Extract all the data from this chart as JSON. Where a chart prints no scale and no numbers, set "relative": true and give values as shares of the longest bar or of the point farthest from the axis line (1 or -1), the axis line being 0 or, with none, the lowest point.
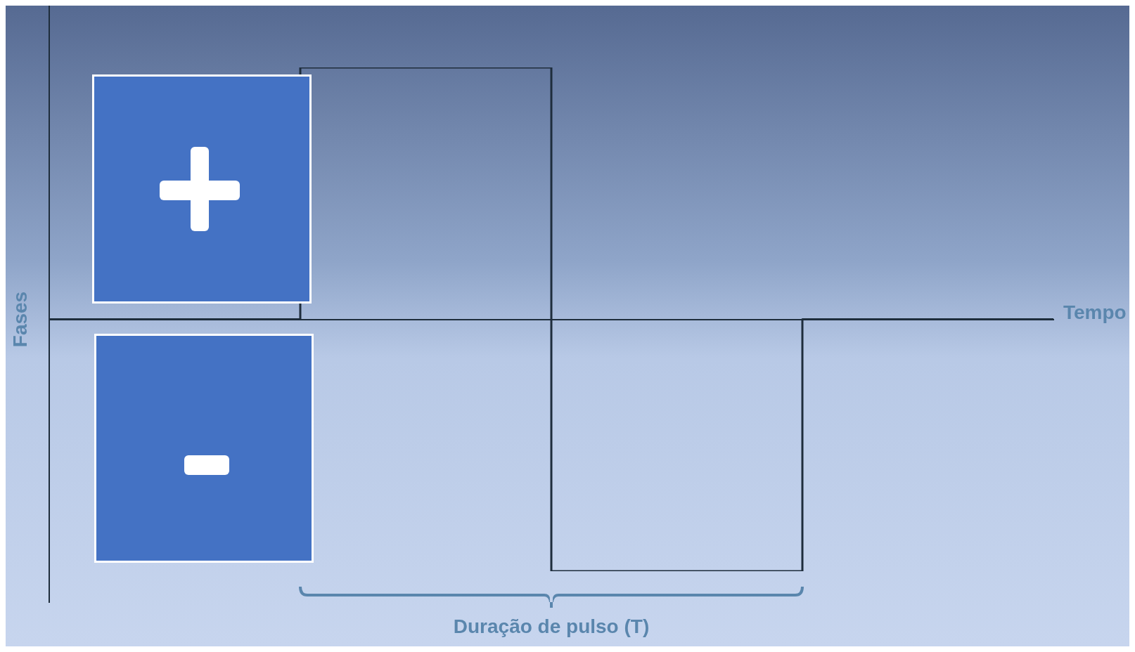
{
  "chart_data": {
    "type": "step",
    "relative": true,
    "xlabel": "Tempo",
    "ylabel": "Fases",
    "categories": [
      null,
      null,
      null,
      null,
      null
    ],
    "series": [
      {
        "color": "#1e2d3c",
        "values": [
          0,
          1,
          -1,
          0,
          0
        ]
      }
    ],
    "annotations": [
      "Duração de pulso (T)"
    ],
    "legend": false,
    "grid": false,
    "marker": "none",
    "line_style": "solid"
  }
}
